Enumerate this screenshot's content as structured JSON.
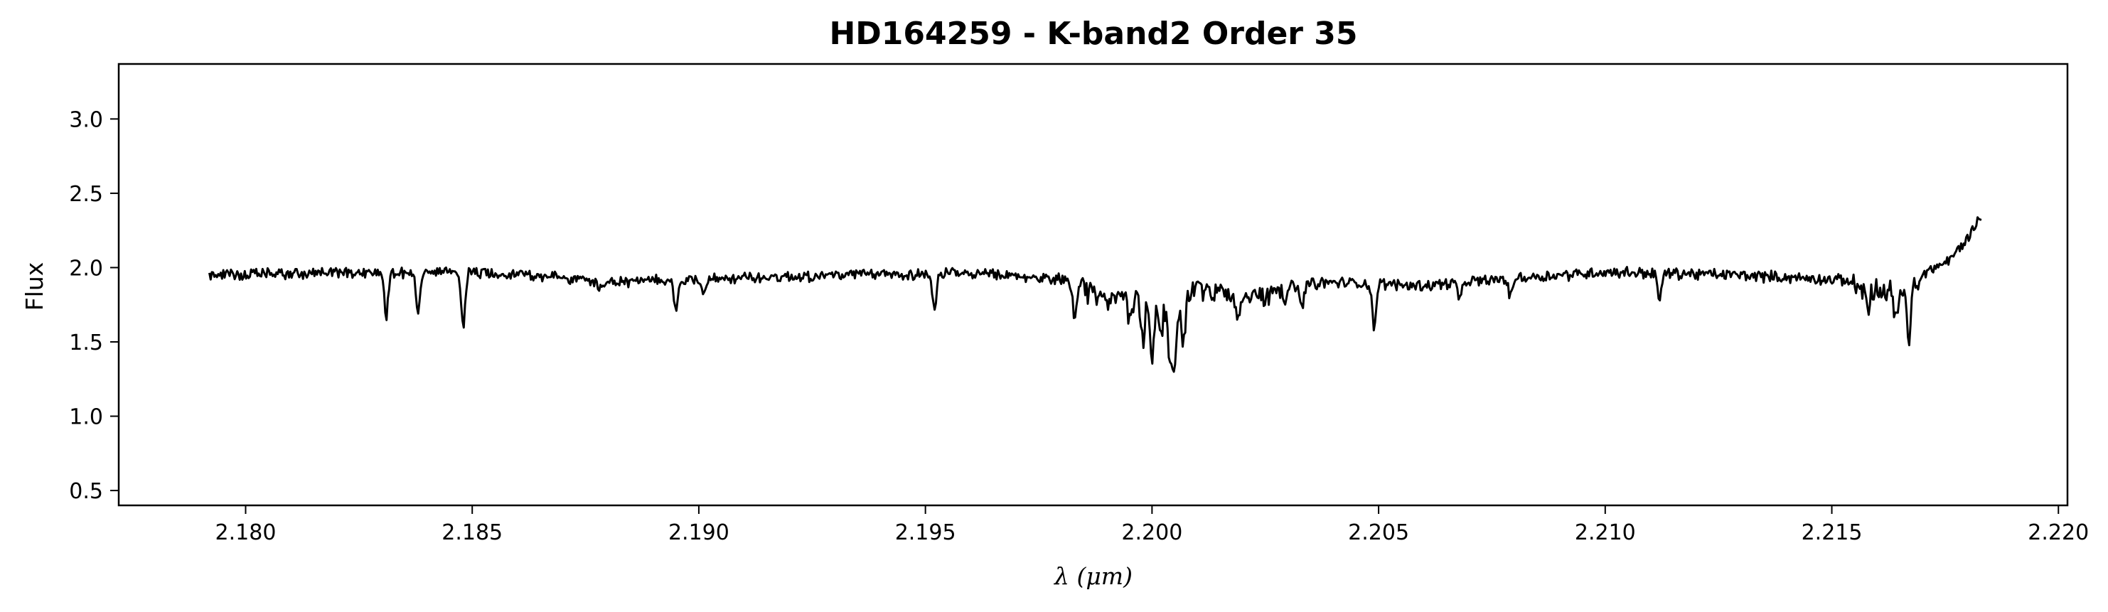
{
  "chart_data": {
    "type": "line",
    "title": "HD164259 - K-band2 Order 35",
    "xlabel": "λ (μm)",
    "ylabel": "Flux",
    "xlim": [
      2.1772,
      2.2202
    ],
    "ylim": [
      0.4,
      3.37
    ],
    "grid": false,
    "x_ticks": [
      2.18,
      2.185,
      2.19,
      2.195,
      2.2,
      2.205,
      2.21,
      2.215,
      2.22
    ],
    "x_tick_labels": [
      "2.180",
      "2.185",
      "2.190",
      "2.195",
      "2.200",
      "2.205",
      "2.210",
      "2.215",
      "2.220"
    ],
    "y_ticks": [
      0.5,
      1.0,
      1.5,
      2.0,
      2.5,
      3.0
    ],
    "y_tick_labels": [
      "0.5",
      "1.0",
      "1.5",
      "2.0",
      "2.5",
      "3.0"
    ],
    "series": [
      {
        "color": "#000000",
        "x_start": 2.1792,
        "x_end": 2.2183,
        "continuum": [
          [
            2.1792,
            1.95
          ],
          [
            2.183,
            1.97
          ],
          [
            2.186,
            1.96
          ],
          [
            2.188,
            1.9
          ],
          [
            2.19,
            1.92
          ],
          [
            2.193,
            1.95
          ],
          [
            2.196,
            1.96
          ],
          [
            2.198,
            1.92
          ],
          [
            2.1995,
            1.85
          ],
          [
            2.2005,
            1.8
          ],
          [
            2.201,
            1.9
          ],
          [
            2.202,
            1.86
          ],
          [
            2.204,
            1.9
          ],
          [
            2.206,
            1.88
          ],
          [
            2.208,
            1.93
          ],
          [
            2.21,
            1.97
          ],
          [
            2.213,
            1.95
          ],
          [
            2.2155,
            1.91
          ],
          [
            2.2165,
            1.88
          ],
          [
            2.217,
            1.96
          ],
          [
            2.2176,
            2.05
          ],
          [
            2.218,
            2.2
          ],
          [
            2.2183,
            2.35
          ]
        ],
        "absorption_lines": [
          [
            2.1831,
            1.67
          ],
          [
            2.1838,
            1.68
          ],
          [
            2.1848,
            1.62
          ],
          [
            2.1878,
            1.85
          ],
          [
            2.1895,
            1.72
          ],
          [
            2.1901,
            1.84
          ],
          [
            2.1952,
            1.72
          ],
          [
            2.1983,
            1.66
          ],
          [
            2.199,
            1.82
          ],
          [
            2.1995,
            1.75
          ],
          [
            2.1998,
            1.55
          ],
          [
            2.2,
            1.45
          ],
          [
            2.2002,
            1.62
          ],
          [
            2.2004,
            1.42
          ],
          [
            2.2005,
            1.4
          ],
          [
            2.2007,
            1.57
          ],
          [
            2.2019,
            1.74
          ],
          [
            2.2033,
            1.72
          ],
          [
            2.2049,
            1.6
          ],
          [
            2.2068,
            1.78
          ],
          [
            2.2079,
            1.8
          ],
          [
            2.2112,
            1.78
          ],
          [
            2.2158,
            1.75
          ],
          [
            2.2164,
            1.7
          ],
          [
            2.2167,
            1.54
          ]
        ]
      }
    ]
  }
}
